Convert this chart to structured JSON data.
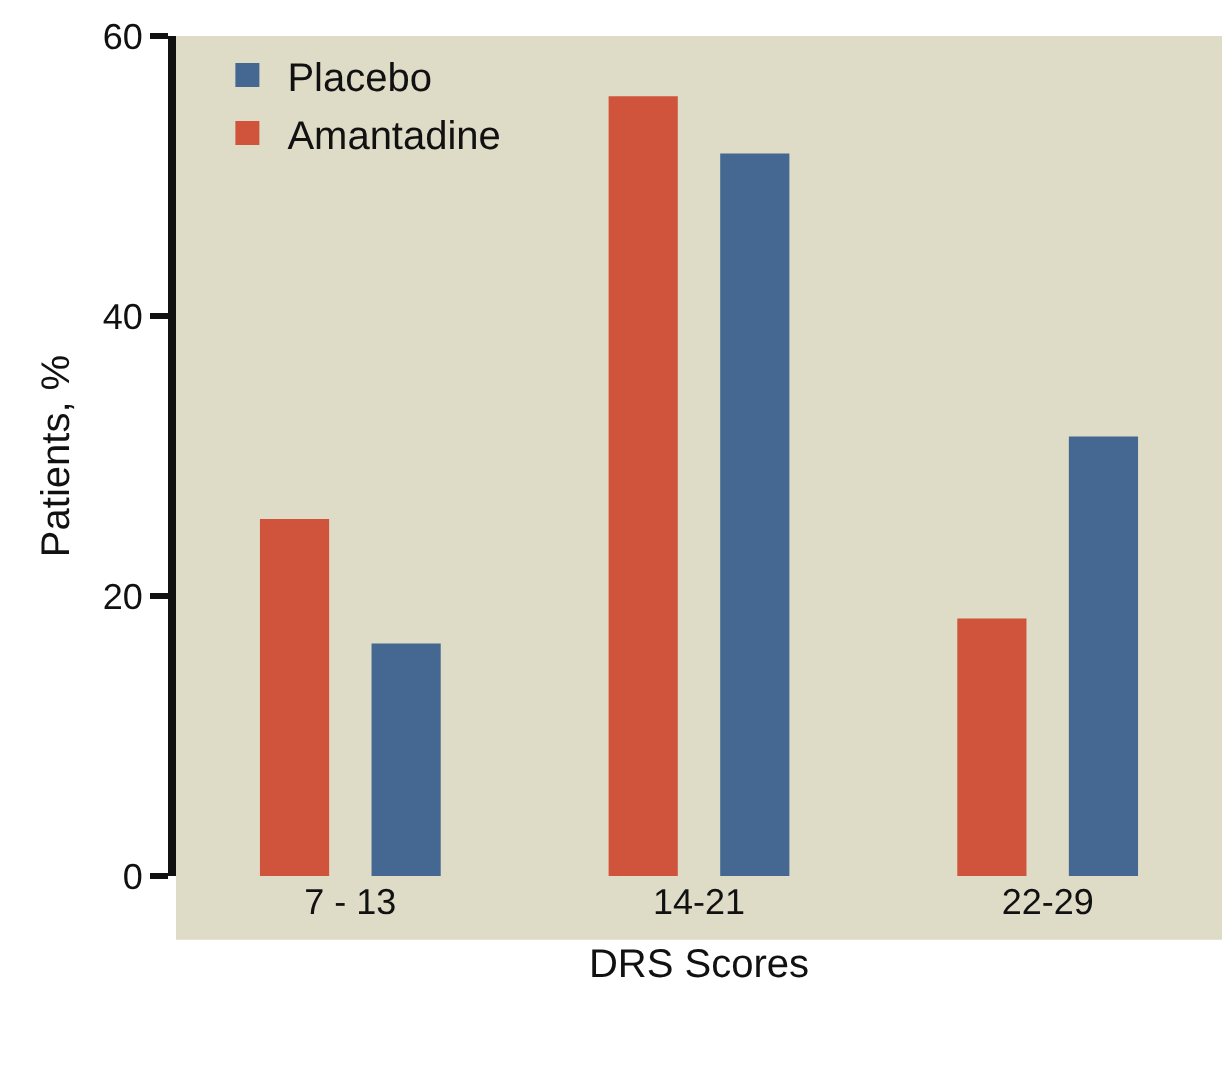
{
  "chart_data": {
    "type": "bar",
    "xlabel": "DRS Scores",
    "ylabel": "Patients, %",
    "categories": [
      "7 - 13",
      "14-21",
      "22-29"
    ],
    "series": [
      {
        "name": "Amantadine",
        "color": "#d0533b",
        "values": [
          25.5,
          55.7,
          18.4
        ]
      },
      {
        "name": "Placebo",
        "color": "#446891",
        "values": [
          16.6,
          51.6,
          31.4
        ]
      }
    ],
    "ylim": [
      0,
      60
    ],
    "yticks": [
      0,
      20,
      40,
      60
    ],
    "grid": false,
    "legend": "top left"
  }
}
